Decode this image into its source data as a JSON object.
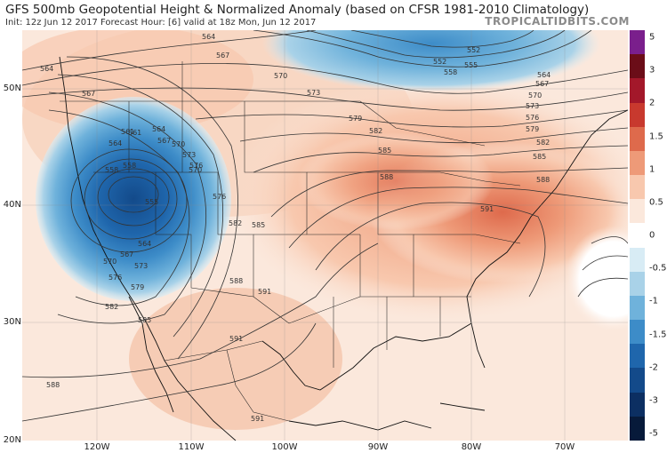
{
  "header": {
    "title": "GFS 500mb Geopotential Height & Normalized Anomaly (based on CFSR 1981-2010 Climatology)",
    "subtitle": "Init: 12z Jun 12 2017   Forecast Hour: [6]   valid at 18z Mon, Jun 12 2017",
    "brand": "TROPICALTIDBITS.COM"
  },
  "axes": {
    "lat_labels": [
      "50N",
      "40N",
      "30N",
      "20N"
    ],
    "lon_labels": [
      "120W",
      "110W",
      "100W",
      "90W",
      "80W",
      "70W"
    ]
  },
  "colorbar": {
    "labels": [
      "5",
      "3",
      "2",
      "1.5",
      "1",
      "0.5",
      "0",
      "-0.5",
      "-1",
      "-1.5",
      "-2",
      "-3",
      "-5"
    ],
    "colors": [
      "#7a1f8c",
      "#6b0d18",
      "#a3182a",
      "#c8392e",
      "#de6a4c",
      "#ee9a78",
      "#f8c8ae",
      "#fbe8dc",
      "#ffffff",
      "#d8ecf5",
      "#a9d2e8",
      "#6fb2db",
      "#3d8cc8",
      "#1f66ac",
      "#134a8a",
      "#0c2f62",
      "#071a3a"
    ]
  },
  "contours": {
    "labels": [
      "564",
      "567",
      "564",
      "567",
      "570",
      "573",
      "561",
      "564",
      "567",
      "558",
      "555",
      "570",
      "576",
      "564",
      "567",
      "570",
      "573",
      "576",
      "579",
      "582",
      "585",
      "588",
      "579",
      "582",
      "585",
      "588",
      "591",
      "591",
      "591",
      "552",
      "555",
      "558",
      "564",
      "567",
      "570",
      "573",
      "576",
      "579",
      "582",
      "585",
      "588",
      "591",
      "588",
      "585",
      "582",
      "576",
      "573",
      "570",
      "564",
      "561",
      "558",
      "552"
    ]
  }
}
